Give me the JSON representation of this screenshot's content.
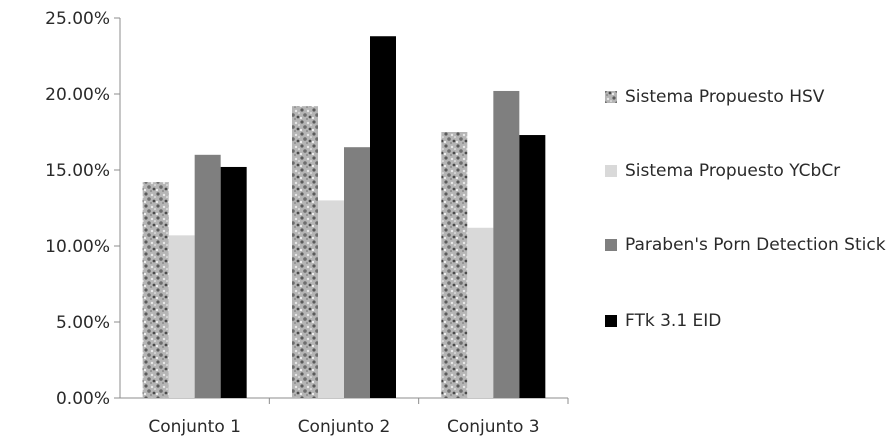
{
  "chart_data": {
    "type": "bar",
    "categories": [
      "Conjunto 1",
      "Conjunto 2",
      "Conjunto 3"
    ],
    "series": [
      {
        "name": "Sistema Propuesto HSV",
        "values": [
          0.142,
          0.192,
          0.175
        ],
        "color": "#a6a6a6",
        "pattern": "speckled-granite"
      },
      {
        "name": "Sistema Propuesto YCbCr",
        "values": [
          0.107,
          0.13,
          0.112
        ],
        "color": "#d9d9d9",
        "pattern": "solid"
      },
      {
        "name": "Paraben's Porn Detection Stick",
        "values": [
          0.16,
          0.165,
          0.202
        ],
        "color": "#7f7f7f",
        "pattern": "solid"
      },
      {
        "name": "FTk 3.1 EID",
        "values": [
          0.152,
          0.238,
          0.173
        ],
        "color": "#000000",
        "pattern": "solid"
      }
    ],
    "ylim": [
      0,
      0.25
    ],
    "yticks": [
      0,
      0.05,
      0.1,
      0.15,
      0.2,
      0.25
    ],
    "ytick_labels": [
      "0.00%",
      "5.00%",
      "10.00%",
      "15.00%",
      "20.00%",
      "25.00%"
    ],
    "grid": false,
    "legend_position": "right",
    "title": "",
    "xlabel": "",
    "ylabel": ""
  }
}
